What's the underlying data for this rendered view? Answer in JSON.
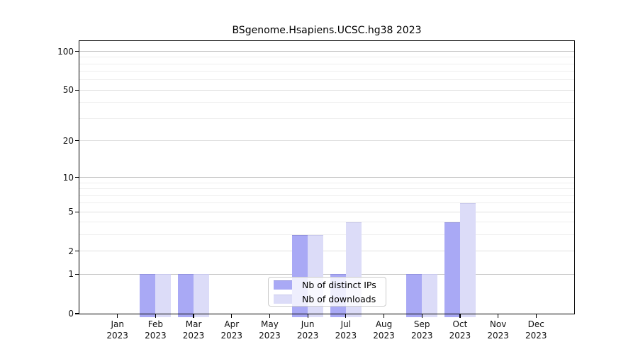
{
  "chart_data": {
    "type": "bar",
    "title": "BSgenome.Hsapiens.UCSC.hg38 2023",
    "categories": [
      "Jan",
      "Feb",
      "Mar",
      "Apr",
      "May",
      "Jun",
      "Jul",
      "Aug",
      "Sep",
      "Oct",
      "Nov",
      "Dec"
    ],
    "year": "2023",
    "series": [
      {
        "name": "Nb of distinct IPs",
        "color": "#a9a9f5",
        "edge": "#9292de",
        "values": [
          0,
          1,
          1,
          0,
          0,
          3,
          1,
          0,
          1,
          4,
          0,
          0
        ]
      },
      {
        "name": "Nb of downloads",
        "color": "#dcdcf8",
        "edge": "#c8c8ec",
        "values": [
          0,
          1,
          1,
          0,
          0,
          3,
          4,
          0,
          1,
          6,
          0,
          0
        ]
      }
    ],
    "yscale": "log1p",
    "ylim": [
      0,
      120
    ],
    "yticks": [
      0,
      1,
      2,
      5,
      10,
      20,
      50,
      100
    ],
    "grid": {
      "major": {
        "values": [
          1,
          10,
          100
        ],
        "color": "#c4c4c4"
      },
      "mid": {
        "values": [
          2,
          5,
          20,
          50
        ],
        "color": "#e0e0e0"
      },
      "minor": {
        "values": [
          3,
          4,
          6,
          7,
          8,
          9,
          30,
          40,
          60,
          70,
          80,
          90
        ],
        "color": "#eeeeee"
      }
    },
    "legend_position": "bottom-center",
    "grid_on": true
  }
}
